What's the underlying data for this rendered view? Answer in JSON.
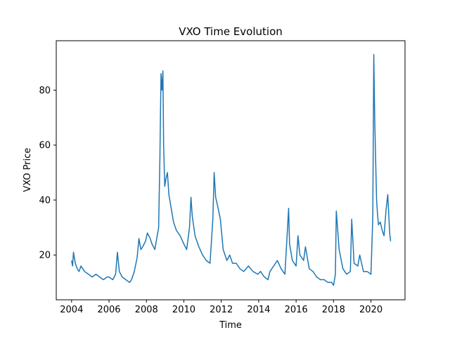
{
  "chart_data": {
    "type": "line",
    "title": "VXO Time Evolution",
    "xlabel": "Time",
    "ylabel": "VXO Price",
    "xlim": [
      2003.18,
      2021.82
    ],
    "ylim": [
      3.7,
      98.0
    ],
    "xticks": [
      2004,
      2006,
      2008,
      2010,
      2012,
      2014,
      2016,
      2018,
      2020
    ],
    "xtick_labels": [
      "2004",
      "2006",
      "2008",
      "2010",
      "2012",
      "2014",
      "2016",
      "2018",
      "2020"
    ],
    "yticks": [
      20,
      40,
      60,
      80
    ],
    "ytick_labels": [
      "20",
      "40",
      "60",
      "80"
    ],
    "grid": false,
    "legend": "none",
    "line_color": "#1f77b4",
    "series": [
      {
        "x": [
          2004.0,
          2004.05,
          2004.1,
          2004.2,
          2004.3,
          2004.4,
          2004.5,
          2004.7,
          2004.9,
          2005.1,
          2005.3,
          2005.5,
          2005.7,
          2005.9,
          2006.0,
          2006.2,
          2006.35,
          2006.45,
          2006.55,
          2006.7,
          2006.9,
          2007.1,
          2007.2,
          2007.35,
          2007.5,
          2007.6,
          2007.7,
          2007.8,
          2007.95,
          2008.05,
          2008.2,
          2008.3,
          2008.45,
          2008.55,
          2008.65,
          2008.72,
          2008.78,
          2008.83,
          2008.88,
          2008.92,
          2008.98,
          2009.05,
          2009.12,
          2009.2,
          2009.3,
          2009.45,
          2009.6,
          2009.8,
          2010.0,
          2010.15,
          2010.3,
          2010.38,
          2010.45,
          2010.6,
          2010.8,
          2011.0,
          2011.2,
          2011.4,
          2011.55,
          2011.62,
          2011.7,
          2011.8,
          2011.95,
          2012.1,
          2012.3,
          2012.45,
          2012.6,
          2012.8,
          2013.0,
          2013.2,
          2013.45,
          2013.7,
          2013.95,
          2014.1,
          2014.3,
          2014.5,
          2014.6,
          2014.8,
          2015.0,
          2015.2,
          2015.4,
          2015.6,
          2015.65,
          2015.8,
          2016.0,
          2016.1,
          2016.2,
          2016.4,
          2016.5,
          2016.7,
          2016.9,
          2017.1,
          2017.3,
          2017.5,
          2017.7,
          2017.9,
          2018.0,
          2018.1,
          2018.15,
          2018.3,
          2018.5,
          2018.7,
          2018.9,
          2018.97,
          2019.1,
          2019.3,
          2019.4,
          2019.6,
          2019.8,
          2020.0,
          2020.1,
          2020.15,
          2020.2,
          2020.25,
          2020.3,
          2020.35,
          2020.4,
          2020.5,
          2020.6,
          2020.7,
          2020.8,
          2020.9,
          2021.0,
          2021.05
        ],
        "y": [
          18,
          16,
          21,
          17,
          15,
          14,
          16,
          14,
          13,
          12,
          13,
          12,
          11,
          12,
          12,
          11,
          13,
          21,
          14,
          12,
          11,
          10,
          11,
          14,
          19,
          26,
          22,
          23,
          25,
          28,
          26,
          24,
          22,
          26,
          30,
          55,
          86,
          80,
          87,
          60,
          45,
          48,
          50,
          42,
          38,
          32,
          29,
          27,
          24,
          22,
          30,
          41,
          34,
          27,
          23,
          20,
          18,
          17,
          33,
          50,
          41,
          38,
          33,
          22,
          18,
          20,
          17,
          17,
          15,
          14,
          16,
          14,
          13,
          14,
          12,
          11,
          14,
          16,
          18,
          15,
          13,
          37,
          24,
          18,
          16,
          27,
          20,
          18,
          23,
          15,
          14,
          12,
          11,
          11,
          10,
          10,
          9,
          13,
          36,
          22,
          15,
          13,
          14,
          33,
          17,
          16,
          20,
          14,
          14,
          13,
          34,
          93,
          70,
          55,
          40,
          35,
          31,
          32,
          29,
          27,
          36,
          42,
          28,
          25
        ]
      }
    ]
  }
}
